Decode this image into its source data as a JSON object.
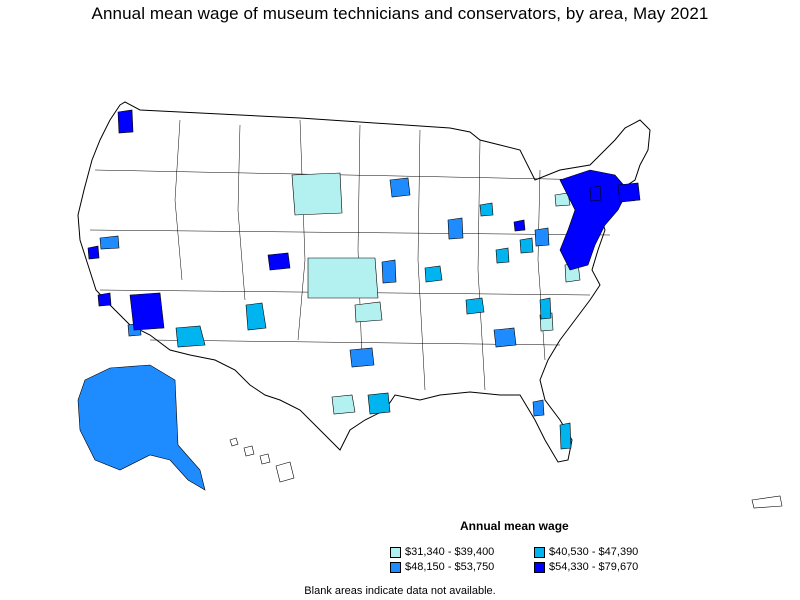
{
  "title": "Annual mean wage of museum technicians and conservators, by area, May 2021",
  "legend": {
    "title": "Annual mean wage",
    "items": [
      {
        "label": "$31,340 - $39,400",
        "color": "#b3f0f0"
      },
      {
        "label": "$40,530 - $47,390",
        "color": "#00b4f0"
      },
      {
        "label": "$48,150 - $53,750",
        "color": "#1e8cff"
      },
      {
        "label": "$54,330 - $79,670",
        "color": "#0000ff"
      }
    ]
  },
  "footnote": "Blank areas indicate data not available.",
  "colors": {
    "outline": "#000000",
    "background": "#ffffff"
  }
}
